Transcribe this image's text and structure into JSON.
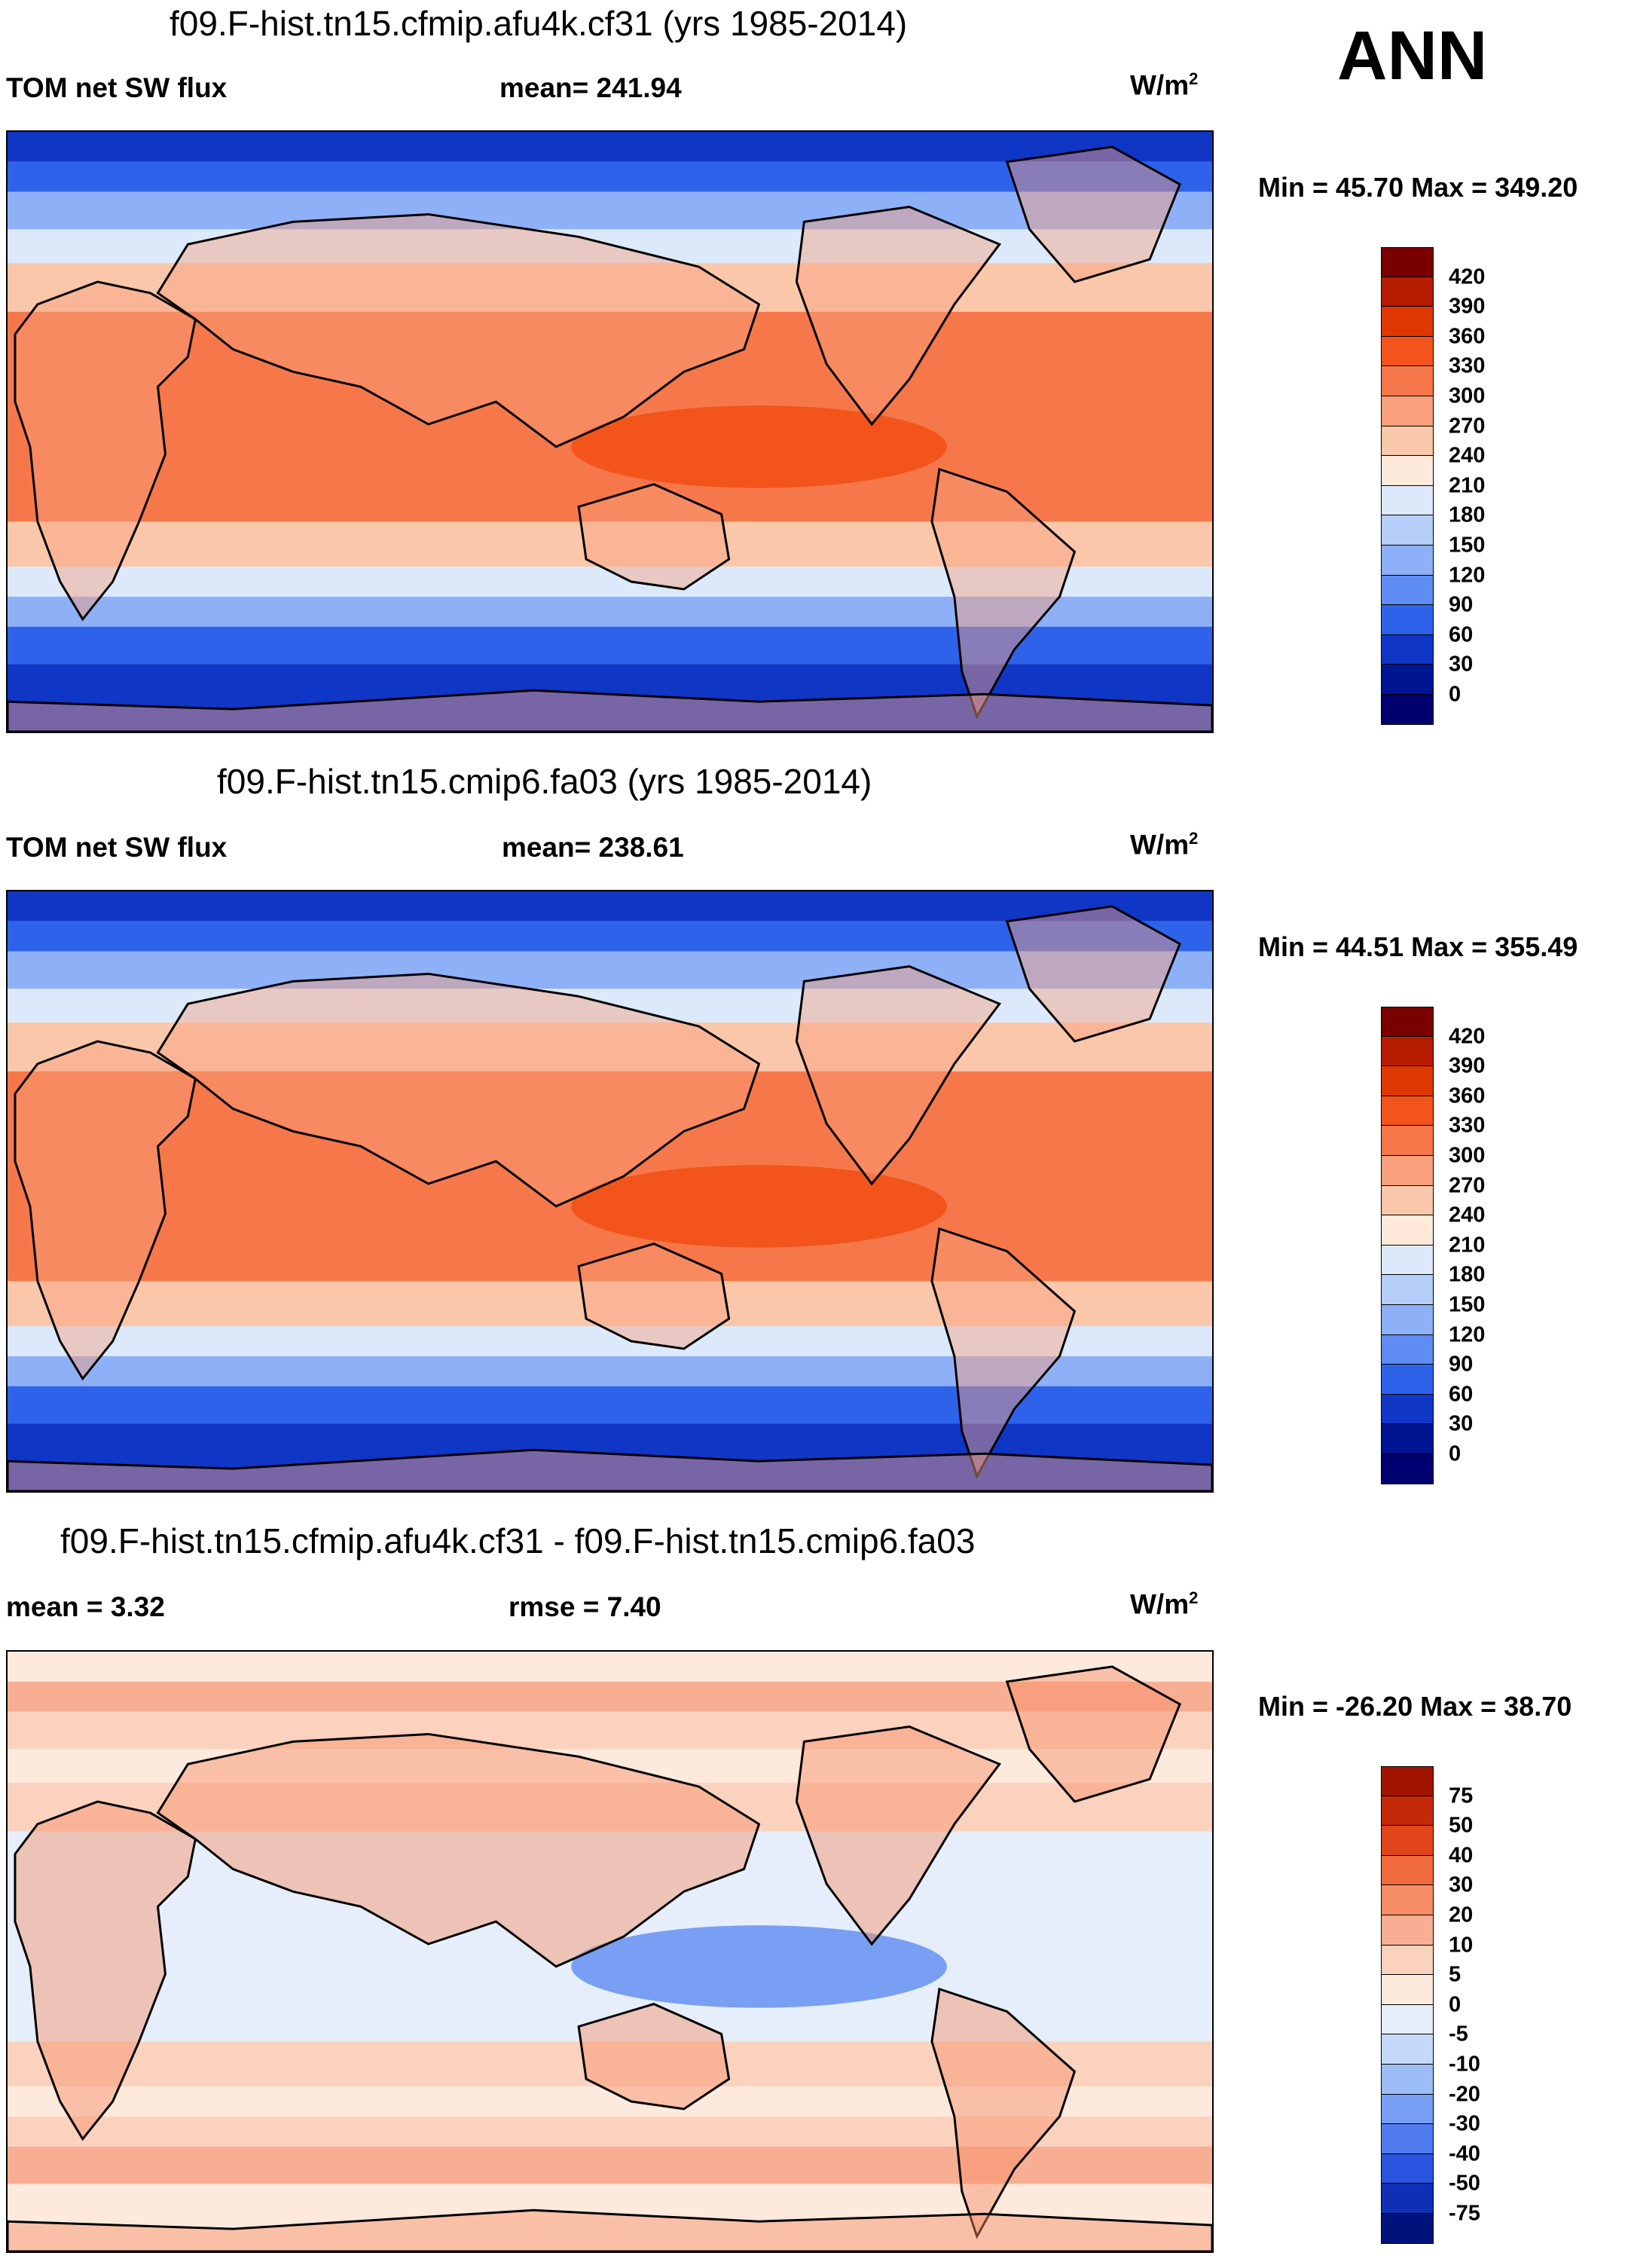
{
  "season": "ANN",
  "panels": [
    {
      "title": "f09.F-hist.tn15.cfmip.afu4k.cf31 (yrs 1985-2014)",
      "left_label": "TOM net SW flux",
      "center_label": "mean= 241.94",
      "units": "W/m",
      "units_sup": "2",
      "minmax": "Min =  45.70 Max = 349.20",
      "colorbar": {
        "labels": [
          "420",
          "390",
          "360",
          "330",
          "300",
          "270",
          "240",
          "210",
          "180",
          "150",
          "120",
          "90",
          "60",
          "30",
          "0"
        ],
        "colors": [
          "#7a0000",
          "#b51c00",
          "#de3800",
          "#f2541c",
          "#f6784a",
          "#f8a07c",
          "#fac7aa",
          "#fdeadb",
          "#dbe9fb",
          "#b4cdf9",
          "#8eb0f6",
          "#5f8cf2",
          "#2e62ea",
          "#1036c6",
          "#001592",
          "#000070"
        ]
      },
      "map_colors": {
        "polar": "#1036c6",
        "subpolar": "#2e62ea",
        "mid": "#8eb0f6",
        "temperate": "#dbe9fb",
        "subtrop": "#fac7aa",
        "trop": "#f6784a",
        "core": "#f2541c",
        "land": "#f8a07c"
      }
    },
    {
      "title": "f09.F-hist.tn15.cmip6.fa03 (yrs 1985-2014)",
      "left_label": "TOM net SW flux",
      "center_label": "mean= 238.61",
      "units": "W/m",
      "units_sup": "2",
      "minmax": "Min =  44.51 Max = 355.49",
      "colorbar": {
        "labels": [
          "420",
          "390",
          "360",
          "330",
          "300",
          "270",
          "240",
          "210",
          "180",
          "150",
          "120",
          "90",
          "60",
          "30",
          "0"
        ],
        "colors": [
          "#7a0000",
          "#b51c00",
          "#de3800",
          "#f2541c",
          "#f6784a",
          "#f8a07c",
          "#fac7aa",
          "#fdeadb",
          "#dbe9fb",
          "#b4cdf9",
          "#8eb0f6",
          "#5f8cf2",
          "#2e62ea",
          "#1036c6",
          "#001592",
          "#000070"
        ]
      },
      "map_colors": {
        "polar": "#1036c6",
        "subpolar": "#2e62ea",
        "mid": "#8eb0f6",
        "temperate": "#dbe9fb",
        "subtrop": "#fac7aa",
        "trop": "#f6784a",
        "core": "#f2541c",
        "land": "#f8a07c"
      }
    },
    {
      "title": "f09.F-hist.tn15.cfmip.afu4k.cf31 - f09.F-hist.tn15.cmip6.fa03",
      "left_label": "mean =    3.32",
      "center_label": "rmse =    7.40",
      "units": "W/m",
      "units_sup": "2",
      "minmax": "Min = -26.20 Max =  38.70",
      "colorbar": {
        "labels": [
          "75",
          "50",
          "40",
          "30",
          "20",
          "10",
          "5",
          "0",
          "-5",
          "-10",
          "-20",
          "-30",
          "-40",
          "-50",
          "-75"
        ],
        "colors": [
          "#a01400",
          "#c42a08",
          "#e0461a",
          "#f26b3e",
          "#f68d66",
          "#f8ae92",
          "#fbd2be",
          "#fdeadd",
          "#e6eefb",
          "#c6d8fa",
          "#9dbdf7",
          "#789ff3",
          "#4f7bee",
          "#2a55e0",
          "#0f2fb4",
          "#00127a"
        ]
      },
      "map_colors": {
        "polar": "#fdeadd",
        "subpolar": "#f8ae92",
        "mid": "#fbd2be",
        "temperate": "#fdeadd",
        "subtrop": "#fbd2be",
        "trop": "#e6eefb",
        "core": "#789ff3",
        "land": "#f68d66"
      }
    }
  ]
}
